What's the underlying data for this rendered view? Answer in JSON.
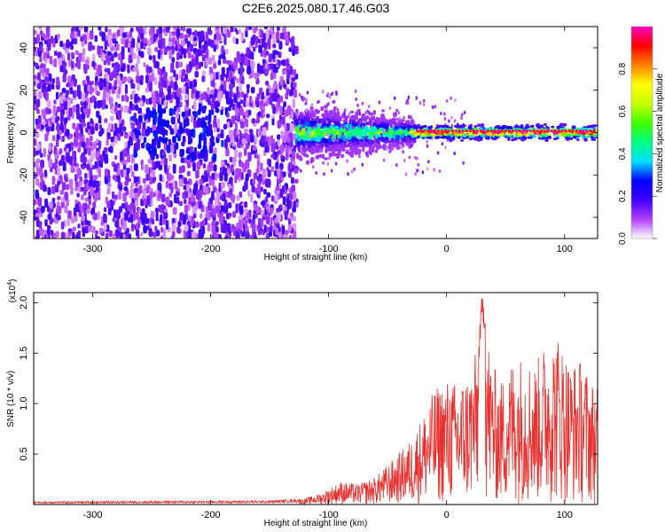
{
  "title": "C2E6.2025.080.17.46.G03",
  "colors": {
    "snr_line": "#e8312f",
    "axes": "#000000",
    "background": "#ffffff"
  },
  "chart_data": [
    {
      "type": "heatmap",
      "xlabel": "Height of straight line (km)",
      "ylabel": "Frequency (Hz)",
      "xlim": [
        -350,
        128
      ],
      "ylim": [
        -50,
        50
      ],
      "x_ticks": [
        -300,
        -200,
        -100,
        0,
        100
      ],
      "y_ticks": [
        -40,
        -20,
        0,
        20,
        40
      ],
      "colorbar": {
        "label": "Normalized spectral amplitude",
        "range": [
          0,
          1
        ],
        "ticks": [
          "0.0",
          "0.2",
          "0.4",
          "0.6",
          "0.8"
        ],
        "stops": [
          "#ffffff",
          "#b040ff",
          "#4000ff",
          "#0000ff",
          "#00e0ff",
          "#00ff80",
          "#40ff00",
          "#c8ff00",
          "#ffff00",
          "#ff8000",
          "#ff0000",
          "#ff00c0"
        ]
      },
      "regions": [
        {
          "x_range": [
            -350,
            -127
          ],
          "description_level": 0.15,
          "frequency_spread": [
            -50,
            50
          ],
          "style": "broadband speckle"
        },
        {
          "x_range": [
            -127,
            -30
          ],
          "description_level": 0.45,
          "frequency_spread": [
            -12,
            10
          ],
          "style": "diffuse band"
        },
        {
          "x_range": [
            -30,
            128
          ],
          "description_level": 0.95,
          "frequency_spread": [
            -3,
            4
          ],
          "style": "narrow line at 0 Hz"
        }
      ]
    },
    {
      "type": "line",
      "xlabel": "Height of straight line (km)",
      "ylabel": "SNR (10 * v/v)",
      "y_multiplier": "(x10",
      "y_multiplier_exp": "4",
      "y_multiplier_close": ")",
      "xlim": [
        -350,
        128
      ],
      "ylim": [
        0,
        21000
      ],
      "x_ticks": [
        -300,
        -200,
        -100,
        0,
        100
      ],
      "y_ticks": [
        0.5,
        1.0,
        1.5,
        2.0
      ],
      "y_tick_labels": [
        "0.5",
        "1.0",
        "1.5",
        "2.0"
      ],
      "envelope": [
        [
          -350,
          300
        ],
        [
          -250,
          350
        ],
        [
          -150,
          400
        ],
        [
          -120,
          600
        ],
        [
          -105,
          1200
        ],
        [
          -90,
          2300
        ],
        [
          -75,
          2000
        ],
        [
          -60,
          2800
        ],
        [
          -45,
          4500
        ],
        [
          -30,
          6500
        ],
        [
          -20,
          9000
        ],
        [
          -10,
          11500
        ],
        [
          0,
          12500
        ],
        [
          10,
          12000
        ],
        [
          20,
          13500
        ],
        [
          27,
          16000
        ],
        [
          30,
          21000
        ],
        [
          33,
          20000
        ],
        [
          37,
          15000
        ],
        [
          45,
          12000
        ],
        [
          55,
          14500
        ],
        [
          65,
          15000
        ],
        [
          75,
          14000
        ],
        [
          85,
          16500
        ],
        [
          95,
          17000
        ],
        [
          105,
          14000
        ],
        [
          115,
          14500
        ],
        [
          120,
          13000
        ],
        [
          128,
          11500
        ]
      ]
    }
  ]
}
